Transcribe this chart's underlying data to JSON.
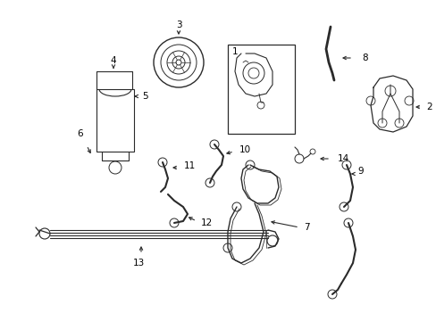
{
  "bg_color": "#ffffff",
  "line_color": "#2a2a2a",
  "text_color": "#000000",
  "fig_width": 4.89,
  "fig_height": 3.6,
  "dpi": 100
}
